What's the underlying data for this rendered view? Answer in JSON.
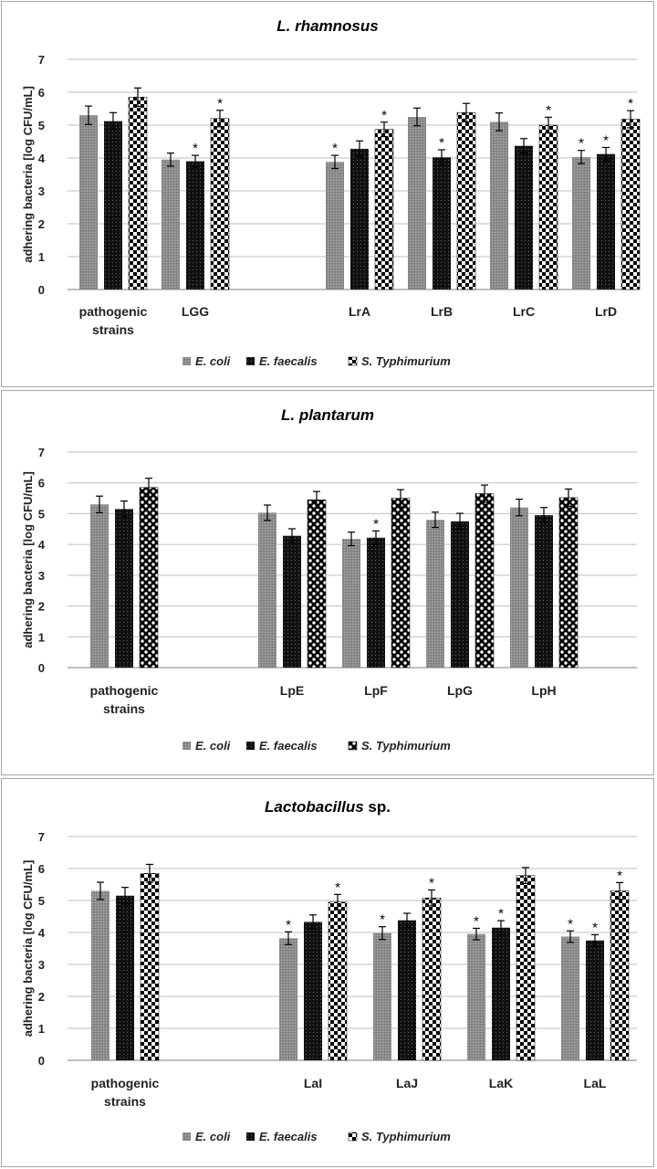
{
  "colors": {
    "e_coli": "#8c8c8c",
    "e_faecalis": "#111111",
    "s_typhimurium": "#ffffff",
    "grid": "#bfbfbf",
    "axis": "#7f7f7f",
    "text": "#222222"
  },
  "chart_data": [
    {
      "type": "bar",
      "title_italic": "L. rhamnosus",
      "title_rest": "",
      "ylabel": "adhering bacteria [log CFU/mL]",
      "ylim": [
        0,
        7
      ],
      "yticks": [
        "0",
        "1",
        "2",
        "3",
        "4",
        "5",
        "6",
        "7"
      ],
      "grid": true,
      "legend_position": "bottom",
      "categories": [
        {
          "label": [
            "pathogenic",
            "strains"
          ],
          "slot": 0
        },
        {
          "label": [
            "LGG"
          ],
          "slot": 1
        },
        {
          "label": [
            "LrA"
          ],
          "slot": 3
        },
        {
          "label": [
            "LrB"
          ],
          "slot": 4
        },
        {
          "label": [
            "LrC"
          ],
          "slot": 5
        },
        {
          "label": [
            "LrD"
          ],
          "slot": 6
        }
      ],
      "slots": 7,
      "series": [
        {
          "name": "E. coli",
          "pattern": "ecoli",
          "values": [
            5.3,
            3.95,
            3.88,
            5.25,
            5.1,
            4.03
          ],
          "errors": [
            0.28,
            0.2,
            0.2,
            0.27,
            0.27,
            0.2
          ],
          "significant": [
            false,
            false,
            true,
            false,
            false,
            true
          ]
        },
        {
          "name": "E. faecalis",
          "pattern": "faecalis",
          "values": [
            5.12,
            3.9,
            4.28,
            4.02,
            4.37,
            4.12
          ],
          "errors": [
            0.26,
            0.18,
            0.24,
            0.23,
            0.22,
            0.2
          ],
          "significant": [
            false,
            true,
            false,
            true,
            false,
            true
          ]
        },
        {
          "name": "S. Typhimurium",
          "pattern": "checker",
          "values": [
            5.85,
            5.2,
            4.87,
            5.38,
            5.0,
            5.18
          ],
          "errors": [
            0.28,
            0.25,
            0.22,
            0.28,
            0.24,
            0.26
          ],
          "significant": [
            false,
            true,
            true,
            false,
            true,
            true
          ]
        }
      ],
      "significance_marker": "*"
    },
    {
      "type": "bar",
      "title_italic": "L. plantarum",
      "title_rest": "",
      "ylabel": "adhering bacteria [log CFU/mL]",
      "ylim": [
        0,
        7
      ],
      "yticks": [
        "0",
        "1",
        "2",
        "3",
        "4",
        "5",
        "6",
        "7"
      ],
      "grid": true,
      "legend_position": "bottom",
      "categories": [
        {
          "label": [
            "pathogenic",
            "strains"
          ],
          "slot": 0
        },
        {
          "label": [
            "LpE"
          ],
          "slot": 2
        },
        {
          "label": [
            "LpF"
          ],
          "slot": 3
        },
        {
          "label": [
            "LpG"
          ],
          "slot": 4
        },
        {
          "label": [
            "LpH"
          ],
          "slot": 5
        }
      ],
      "slots": 6,
      "series": [
        {
          "name": "E. coli",
          "pattern": "ecoli",
          "values": [
            5.3,
            5.03,
            4.18,
            4.8,
            5.2
          ],
          "errors": [
            0.27,
            0.25,
            0.22,
            0.25,
            0.27
          ],
          "significant": [
            false,
            false,
            false,
            false,
            false
          ]
        },
        {
          "name": "E. faecalis",
          "pattern": "faecalis",
          "values": [
            5.15,
            4.28,
            4.22,
            4.75,
            4.95
          ],
          "errors": [
            0.26,
            0.23,
            0.22,
            0.26,
            0.25
          ],
          "significant": [
            false,
            false,
            true,
            false,
            false
          ]
        },
        {
          "name": "S. Typhimurium",
          "pattern": "holes",
          "values": [
            5.85,
            5.45,
            5.5,
            5.65,
            5.52
          ],
          "errors": [
            0.3,
            0.27,
            0.28,
            0.28,
            0.28
          ],
          "significant": [
            false,
            false,
            false,
            false,
            false
          ]
        }
      ],
      "significance_marker": "*"
    },
    {
      "type": "bar",
      "title_italic": "Lactobacillus",
      "title_rest": " sp.",
      "ylabel": "adhering bacteria [log CFU/mL]",
      "ylim": [
        0,
        7
      ],
      "yticks": [
        "0",
        "1",
        "2",
        "3",
        "4",
        "5",
        "6",
        "7"
      ],
      "grid": true,
      "legend_position": "bottom",
      "categories": [
        {
          "label": [
            "pathogenic",
            "strains"
          ],
          "slot": 0
        },
        {
          "label": [
            "LaI"
          ],
          "slot": 2
        },
        {
          "label": [
            "LaJ"
          ],
          "slot": 3
        },
        {
          "label": [
            "LaK"
          ],
          "slot": 4
        },
        {
          "label": [
            "LaL"
          ],
          "slot": 5
        }
      ],
      "slots": 6,
      "series": [
        {
          "name": "E. coli",
          "pattern": "ecoli",
          "values": [
            5.3,
            3.82,
            3.98,
            3.95,
            3.87
          ],
          "errors": [
            0.27,
            0.2,
            0.2,
            0.18,
            0.18
          ],
          "significant": [
            false,
            true,
            true,
            true,
            true
          ]
        },
        {
          "name": "E. faecalis",
          "pattern": "faecalis",
          "values": [
            5.15,
            4.33,
            4.38,
            4.15,
            3.75
          ],
          "errors": [
            0.26,
            0.22,
            0.22,
            0.22,
            0.18
          ],
          "significant": [
            false,
            false,
            false,
            true,
            true
          ]
        },
        {
          "name": "S. Typhimurium",
          "pattern": "checker",
          "values": [
            5.85,
            4.95,
            5.08,
            5.78,
            5.3
          ],
          "errors": [
            0.28,
            0.24,
            0.25,
            0.25,
            0.26
          ],
          "significant": [
            false,
            true,
            true,
            false,
            true
          ]
        }
      ],
      "significance_marker": "*"
    }
  ]
}
